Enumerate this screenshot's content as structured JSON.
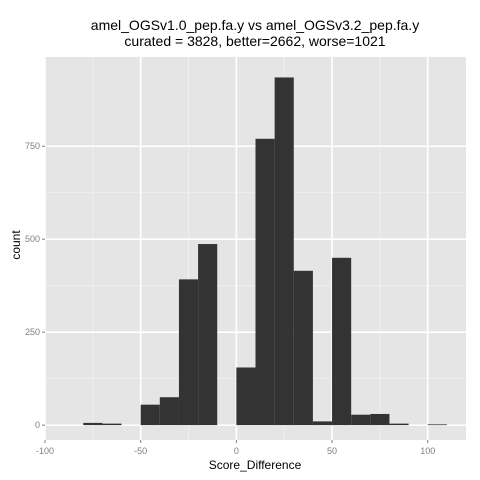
{
  "chart_data": {
    "type": "bar",
    "title": "amel_OGSv1.0_pep.fa.y vs amel_OGSv3.2_pep.fa.y",
    "subtitle": "curated = 3828, better=2662, worse=1021",
    "xlabel": "Score_Difference",
    "ylabel": "count",
    "xlim": [
      -100,
      120
    ],
    "ylim": [
      -40,
      990
    ],
    "x_ticks": [
      -100,
      -50,
      0,
      50,
      100
    ],
    "y_ticks": [
      0,
      250,
      500,
      750
    ],
    "grid": true,
    "legend": "none",
    "bin_width": 10,
    "bins": [
      {
        "start": -80,
        "value": 6
      },
      {
        "start": -70,
        "value": 4
      },
      {
        "start": -50,
        "value": 55
      },
      {
        "start": -40,
        "value": 75
      },
      {
        "start": -30,
        "value": 392
      },
      {
        "start": -20,
        "value": 487
      },
      {
        "start": 0,
        "value": 155
      },
      {
        "start": 10,
        "value": 770
      },
      {
        "start": 20,
        "value": 935
      },
      {
        "start": 30,
        "value": 415
      },
      {
        "start": 40,
        "value": 10
      },
      {
        "start": 50,
        "value": 450
      },
      {
        "start": 60,
        "value": 28
      },
      {
        "start": 70,
        "value": 30
      },
      {
        "start": 80,
        "value": 4
      },
      {
        "start": 100,
        "value": 2
      }
    ],
    "colors": {
      "panel": "#e5e5e5",
      "grid_major": "#ffffff",
      "grid_minor": "#f2f2f2",
      "bar": "#333333",
      "tick_text": "#7f7f7f"
    }
  }
}
